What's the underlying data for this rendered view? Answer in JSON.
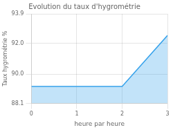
{
  "chart_data": {
    "type": "area",
    "title": "Evolution du taux d'hygrométrie",
    "xlabel": "heure par heure",
    "ylabel": "Taux hygrométrie %",
    "x": [
      0,
      1,
      2,
      3
    ],
    "values": [
      89.2,
      89.2,
      89.2,
      92.5
    ],
    "xlim": [
      0,
      3
    ],
    "ylim": [
      88.1,
      93.9
    ],
    "xticks": [
      0,
      1,
      2,
      3
    ],
    "yticks": [
      88.1,
      {
        "value": 90.0,
        "label": "90.0"
      },
      {
        "value": 92.0,
        "label": "92.0"
      },
      93.9
    ],
    "grid": true
  }
}
